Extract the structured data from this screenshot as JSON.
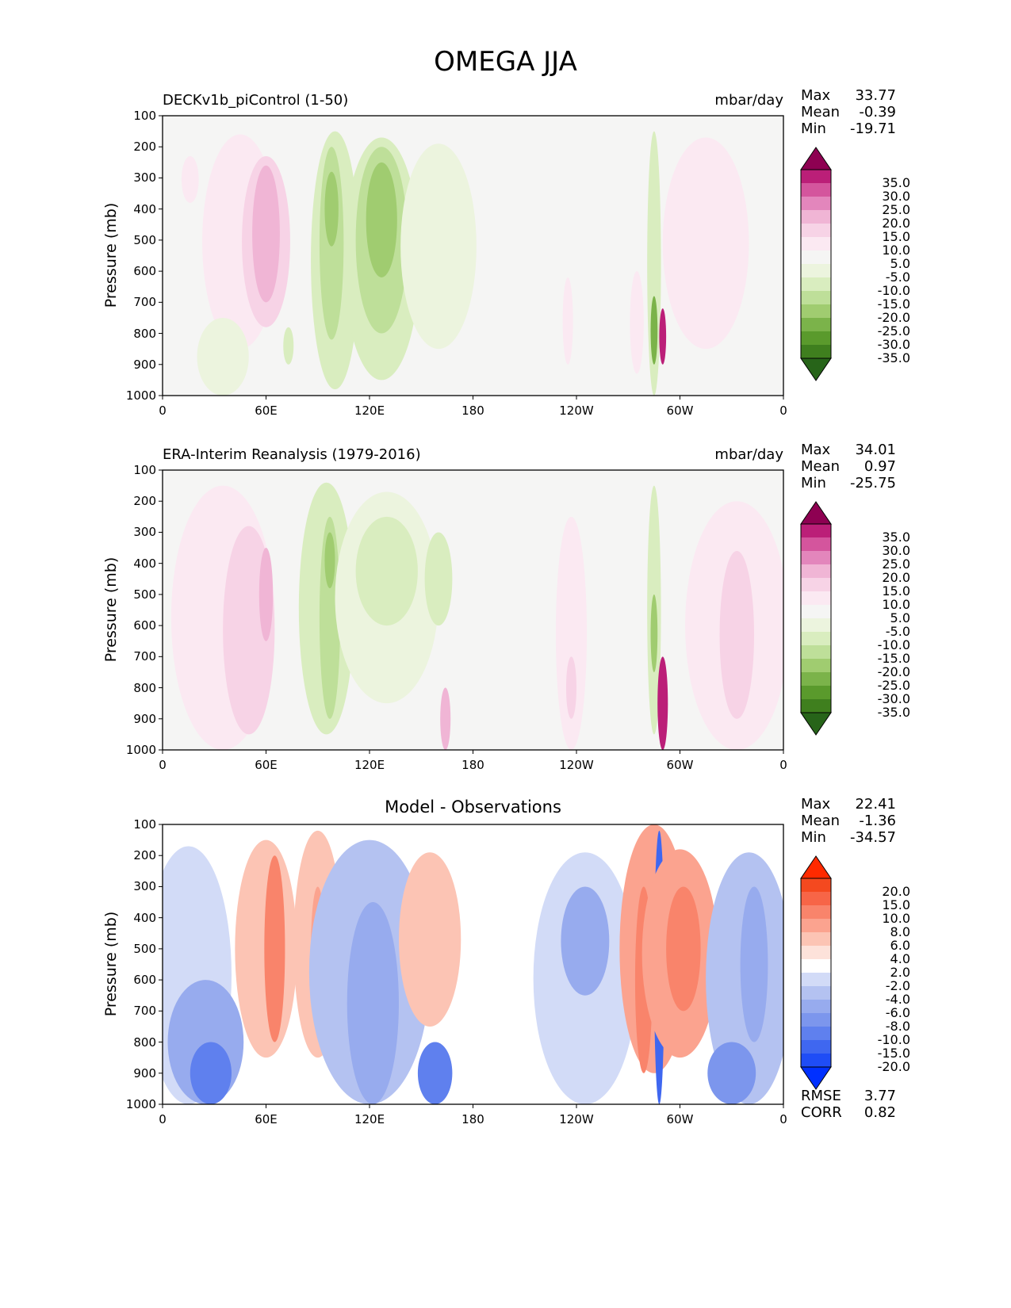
{
  "title": "OMEGA JJA",
  "colors": {
    "omega_levels": [
      "#276419",
      "#3f7f1e",
      "#5a9a2c",
      "#7bb34a",
      "#a0cc70",
      "#bedf99",
      "#d9edbf",
      "#ecf4de",
      "#f5f5f4",
      "#fbe9f2",
      "#f7d3e6",
      "#f0b5d5",
      "#e386bc",
      "#d4559d",
      "#bb1f78",
      "#8e0152"
    ],
    "diff_levels": [
      "#0030ff",
      "#1f4df6",
      "#3f67f0",
      "#5f80ee",
      "#7c96ed",
      "#97abee",
      "#b4c2f1",
      "#d2dbf7",
      "#ffffff",
      "#fde2da",
      "#fcc4b4",
      "#fba38f",
      "#f9846b",
      "#f76547",
      "#f4491f",
      "#ff2a00"
    ]
  },
  "chart_data": [
    {
      "type": "heatmap",
      "title": "DECKv1b_piControl (1-50)",
      "units": "mbar/day",
      "ylabel": "Pressure (mb)",
      "y_ticks": [
        "100",
        "200",
        "300",
        "400",
        "500",
        "600",
        "700",
        "800",
        "900",
        "1000"
      ],
      "x_ticks": [
        "0",
        "60E",
        "120E",
        "180",
        "120W",
        "60W",
        "0"
      ],
      "xlim": [
        0,
        360
      ],
      "ylim": [
        1000,
        100
      ],
      "stats": {
        "max_label": "Max",
        "max": "33.77",
        "mean_label": "Mean",
        "mean": "-0.39",
        "min_label": "Min",
        "min": "-19.71"
      },
      "colorbar": {
        "palette": "omega_levels",
        "labels": [
          "35.0",
          "30.0",
          "25.0",
          "20.0",
          "15.0",
          "10.0",
          "5.0",
          "-5.0",
          "-10.0",
          "-15.0",
          "-20.0",
          "-25.0",
          "-30.0",
          "-35.0"
        ]
      },
      "features": [
        {
          "lon": 16,
          "p0": 230,
          "p1": 380,
          "w": 5,
          "level": 9
        },
        {
          "lon": 45,
          "p0": 160,
          "p1": 850,
          "w": 22,
          "level": 9
        },
        {
          "lon": 60,
          "p0": 230,
          "p1": 780,
          "w": 14,
          "level": 10
        },
        {
          "lon": 60,
          "p0": 260,
          "p1": 700,
          "w": 8,
          "level": 11
        },
        {
          "lon": 100,
          "p0": 150,
          "p1": 980,
          "w": 14,
          "level": 6
        },
        {
          "lon": 98,
          "p0": 200,
          "p1": 820,
          "w": 7,
          "level": 5
        },
        {
          "lon": 98,
          "p0": 280,
          "p1": 520,
          "w": 4,
          "level": 4
        },
        {
          "lon": 127,
          "p0": 170,
          "p1": 950,
          "w": 22,
          "level": 6
        },
        {
          "lon": 127,
          "p0": 200,
          "p1": 800,
          "w": 15,
          "level": 5
        },
        {
          "lon": 127,
          "p0": 250,
          "p1": 620,
          "w": 9,
          "level": 4
        },
        {
          "lon": 160,
          "p0": 190,
          "p1": 850,
          "w": 22,
          "level": 7
        },
        {
          "lon": 235,
          "p0": 620,
          "p1": 900,
          "w": 3,
          "level": 9
        },
        {
          "lon": 275,
          "p0": 600,
          "p1": 930,
          "w": 4,
          "level": 9
        },
        {
          "lon": 285,
          "p0": 150,
          "p1": 1000,
          "w": 4,
          "level": 6
        },
        {
          "lon": 285,
          "p0": 680,
          "p1": 900,
          "w": 2,
          "level": 3
        },
        {
          "lon": 290,
          "p0": 720,
          "p1": 900,
          "w": 2,
          "level": 14
        },
        {
          "lon": 315,
          "p0": 170,
          "p1": 850,
          "w": 25,
          "level": 9
        },
        {
          "lon": 35,
          "p0": 750,
          "p1": 1000,
          "w": 15,
          "level": 7
        },
        {
          "lon": 73,
          "p0": 780,
          "p1": 900,
          "w": 3,
          "level": 6
        }
      ]
    },
    {
      "type": "heatmap",
      "title": "ERA-Interim Reanalysis (1979-2016)",
      "units": "mbar/day",
      "ylabel": "Pressure (mb)",
      "y_ticks": [
        "100",
        "200",
        "300",
        "400",
        "500",
        "600",
        "700",
        "800",
        "900",
        "1000"
      ],
      "x_ticks": [
        "0",
        "60E",
        "120E",
        "180",
        "120W",
        "60W",
        "0"
      ],
      "xlim": [
        0,
        360
      ],
      "ylim": [
        1000,
        100
      ],
      "stats": {
        "max_label": "Max",
        "max": "34.01",
        "mean_label": "Mean",
        "mean": "0.97",
        "min_label": "Min",
        "min": "-25.75"
      },
      "colorbar": {
        "palette": "omega_levels",
        "labels": [
          "35.0",
          "30.0",
          "25.0",
          "20.0",
          "15.0",
          "10.0",
          "5.0",
          "-5.0",
          "-10.0",
          "-15.0",
          "-20.0",
          "-25.0",
          "-30.0",
          "-35.0"
        ]
      },
      "features": [
        {
          "lon": 35,
          "p0": 150,
          "p1": 1000,
          "w": 30,
          "level": 9
        },
        {
          "lon": 50,
          "p0": 280,
          "p1": 950,
          "w": 15,
          "level": 10
        },
        {
          "lon": 60,
          "p0": 350,
          "p1": 650,
          "w": 4,
          "level": 11
        },
        {
          "lon": 95,
          "p0": 140,
          "p1": 950,
          "w": 16,
          "level": 6
        },
        {
          "lon": 97,
          "p0": 250,
          "p1": 900,
          "w": 6,
          "level": 5
        },
        {
          "lon": 97,
          "p0": 300,
          "p1": 480,
          "w": 3,
          "level": 4
        },
        {
          "lon": 130,
          "p0": 170,
          "p1": 850,
          "w": 30,
          "level": 7
        },
        {
          "lon": 130,
          "p0": 250,
          "p1": 600,
          "w": 18,
          "level": 6
        },
        {
          "lon": 160,
          "p0": 300,
          "p1": 600,
          "w": 8,
          "level": 6
        },
        {
          "lon": 164,
          "p0": 800,
          "p1": 1000,
          "w": 3,
          "level": 11
        },
        {
          "lon": 237,
          "p0": 250,
          "p1": 1000,
          "w": 9,
          "level": 9
        },
        {
          "lon": 237,
          "p0": 700,
          "p1": 900,
          "w": 3,
          "level": 10
        },
        {
          "lon": 285,
          "p0": 150,
          "p1": 950,
          "w": 4,
          "level": 6
        },
        {
          "lon": 285,
          "p0": 500,
          "p1": 750,
          "w": 2,
          "level": 4
        },
        {
          "lon": 290,
          "p0": 700,
          "p1": 1000,
          "w": 3,
          "level": 14
        },
        {
          "lon": 333,
          "p0": 200,
          "p1": 1000,
          "w": 30,
          "level": 9
        },
        {
          "lon": 333,
          "p0": 360,
          "p1": 900,
          "w": 10,
          "level": 10
        }
      ]
    },
    {
      "type": "heatmap",
      "title": "Model - Observations",
      "units": "",
      "ylabel": "Pressure (mb)",
      "y_ticks": [
        "100",
        "200",
        "300",
        "400",
        "500",
        "600",
        "700",
        "800",
        "900",
        "1000"
      ],
      "x_ticks": [
        "0",
        "60E",
        "120E",
        "180",
        "120W",
        "60W",
        "0"
      ],
      "xlim": [
        0,
        360
      ],
      "ylim": [
        1000,
        100
      ],
      "stats": {
        "max_label": "Max",
        "max": "22.41",
        "mean_label": "Mean",
        "mean": "-1.36",
        "min_label": "Min",
        "min": "-34.57",
        "rmse_label": "RMSE",
        "rmse": "3.77",
        "corr_label": "CORR",
        "corr": "0.82"
      },
      "colorbar": {
        "palette": "diff_levels",
        "labels": [
          "20.0",
          "15.0",
          "10.0",
          "8.0",
          "6.0",
          "4.0",
          "2.0",
          "-2.0",
          "-4.0",
          "-6.0",
          "-8.0",
          "-10.0",
          "-15.0",
          "-20.0"
        ]
      },
      "features": [
        {
          "lon": 15,
          "p0": 170,
          "p1": 1000,
          "w": 25,
          "level": 7
        },
        {
          "lon": 25,
          "p0": 600,
          "p1": 1000,
          "w": 22,
          "level": 5
        },
        {
          "lon": 28,
          "p0": 800,
          "p1": 1000,
          "w": 12,
          "level": 3
        },
        {
          "lon": 60,
          "p0": 150,
          "p1": 850,
          "w": 18,
          "level": 10
        },
        {
          "lon": 65,
          "p0": 200,
          "p1": 800,
          "w": 6,
          "level": 12
        },
        {
          "lon": 90,
          "p0": 120,
          "p1": 850,
          "w": 14,
          "level": 10
        },
        {
          "lon": 90,
          "p0": 300,
          "p1": 700,
          "w": 4,
          "level": 11
        },
        {
          "lon": 120,
          "p0": 150,
          "p1": 1000,
          "w": 35,
          "level": 6
        },
        {
          "lon": 122,
          "p0": 350,
          "p1": 1000,
          "w": 15,
          "level": 5
        },
        {
          "lon": 158,
          "p0": 800,
          "p1": 1000,
          "w": 10,
          "level": 3
        },
        {
          "lon": 155,
          "p0": 190,
          "p1": 750,
          "w": 18,
          "level": 10
        },
        {
          "lon": 245,
          "p0": 190,
          "p1": 1000,
          "w": 30,
          "level": 7
        },
        {
          "lon": 245,
          "p0": 300,
          "p1": 650,
          "w": 14,
          "level": 5
        },
        {
          "lon": 285,
          "p0": 100,
          "p1": 900,
          "w": 20,
          "level": 11
        },
        {
          "lon": 279,
          "p0": 300,
          "p1": 900,
          "w": 5,
          "level": 12
        },
        {
          "lon": 288,
          "p0": 120,
          "p1": 1000,
          "w": 3,
          "level": 2
        },
        {
          "lon": 300,
          "p0": 180,
          "p1": 850,
          "w": 22,
          "level": 11
        },
        {
          "lon": 302,
          "p0": 300,
          "p1": 700,
          "w": 10,
          "level": 12
        },
        {
          "lon": 340,
          "p0": 190,
          "p1": 1000,
          "w": 25,
          "level": 6
        },
        {
          "lon": 343,
          "p0": 300,
          "p1": 800,
          "w": 8,
          "level": 5
        },
        {
          "lon": 330,
          "p0": 800,
          "p1": 1000,
          "w": 14,
          "level": 4
        }
      ]
    }
  ]
}
